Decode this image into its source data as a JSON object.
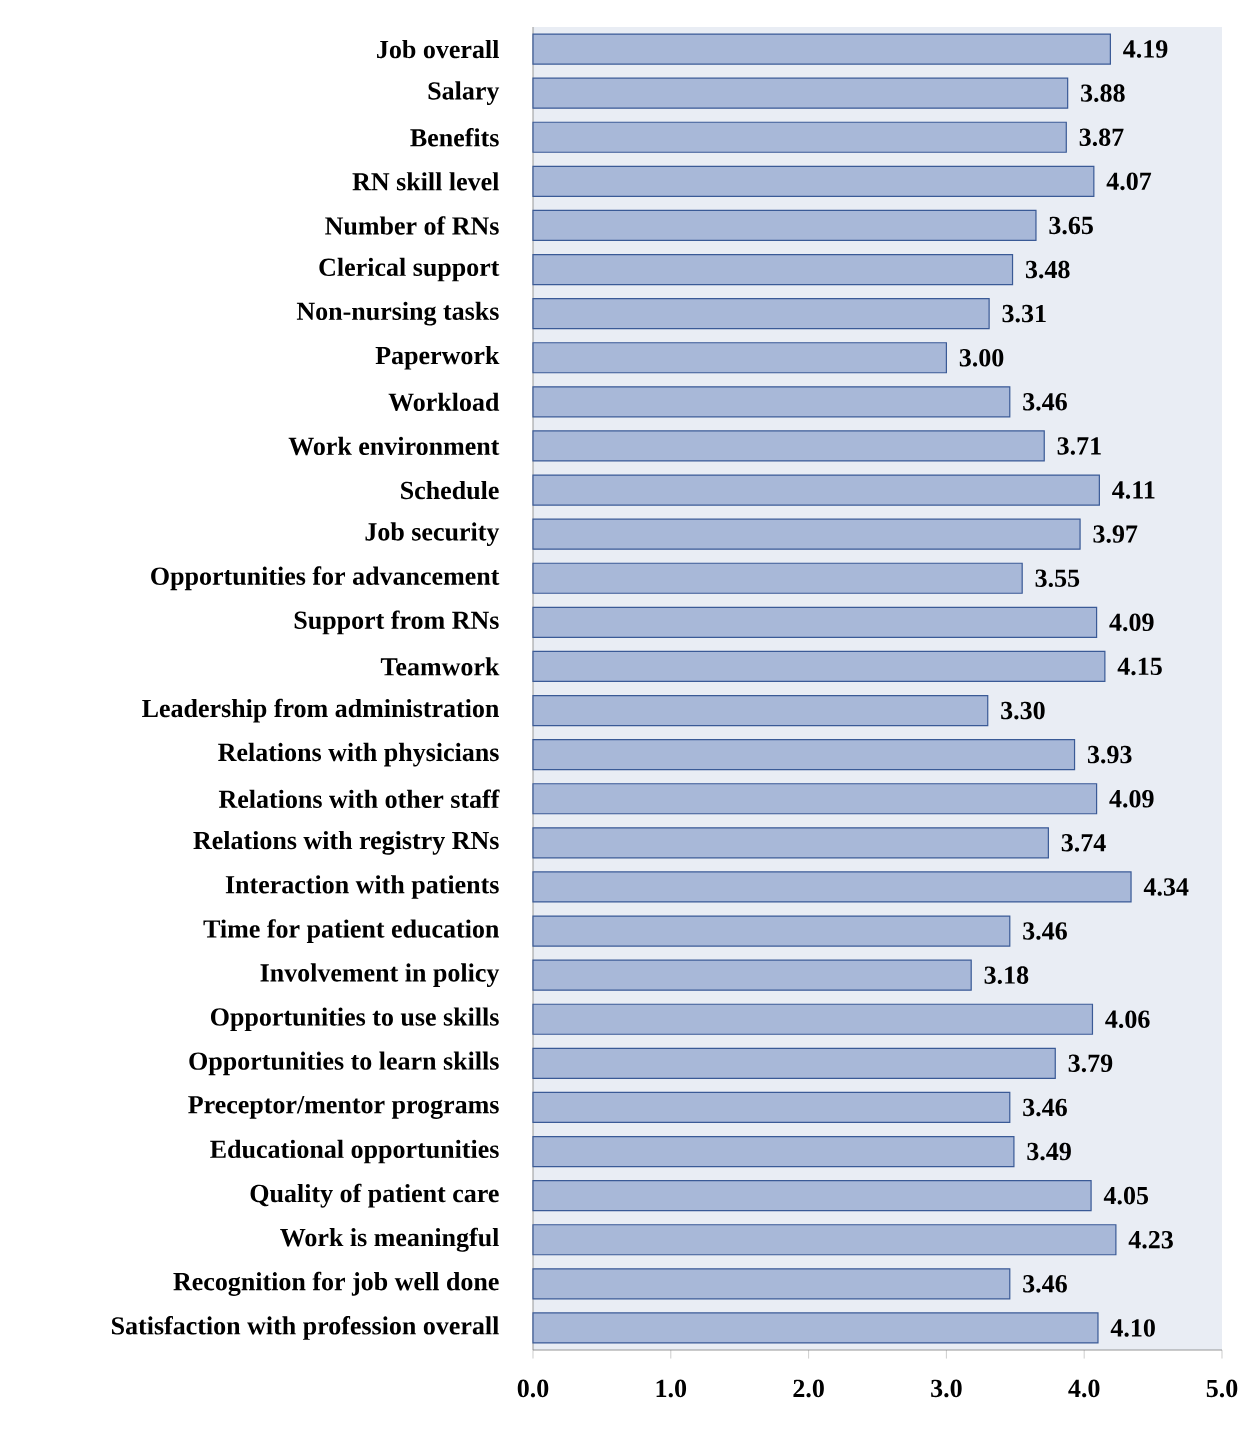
{
  "chart_data": {
    "type": "bar",
    "orientation": "horizontal",
    "categories": [
      "Job overall",
      "Salary",
      "Benefits",
      "RN skill level",
      "Number of RNs",
      "Clerical support",
      "Non-nursing tasks",
      "Paperwork",
      "Workload",
      "Work environment",
      "Schedule",
      "Job security",
      "Opportunities for advancement",
      "Support from RNs",
      "Teamwork",
      "Leadership from administration",
      "Relations with physicians",
      "Relations with other staff",
      "Relations with registry RNs",
      "Interaction with patients",
      "Time for patient education",
      "Involvement in policy",
      "Opportunities to use skills",
      "Opportunities to learn skills",
      "Preceptor/mentor programs",
      "Educational opportunities",
      "Quality of patient care",
      "Work is meaningful",
      "Recognition for job well done",
      "Satisfaction with profession overall"
    ],
    "values": [
      4.19,
      3.88,
      3.87,
      4.07,
      3.65,
      3.48,
      3.31,
      3.0,
      3.46,
      3.71,
      4.11,
      3.97,
      3.55,
      4.09,
      4.15,
      3.3,
      3.93,
      4.09,
      3.74,
      4.34,
      3.46,
      3.18,
      4.06,
      3.79,
      3.46,
      3.49,
      4.05,
      4.23,
      3.46,
      4.1
    ],
    "value_labels": [
      "4.19",
      "3.88",
      "3.87",
      "4.07",
      "3.65",
      "3.48",
      "3.31",
      "3.00",
      "3.46",
      "3.71",
      "4.11",
      "3.97",
      "3.55",
      "4.09",
      "4.15",
      "3.30",
      "3.93",
      "4.09",
      "3.74",
      "4.34",
      "3.46",
      "3.18",
      "4.06",
      "3.79",
      "3.46",
      "3.49",
      "4.05",
      "4.23",
      "3.46",
      "4.10"
    ],
    "color": "#a8b8d8",
    "xlim": [
      0,
      5
    ],
    "xticks": [
      {
        "value": 0,
        "label": "0.0"
      },
      {
        "value": 1,
        "label": "1.0"
      },
      {
        "value": 2,
        "label": "2.0"
      },
      {
        "value": 3,
        "label": "3.0"
      },
      {
        "value": 4,
        "label": "4.0"
      },
      {
        "value": 5,
        "label": "5.0"
      }
    ]
  }
}
